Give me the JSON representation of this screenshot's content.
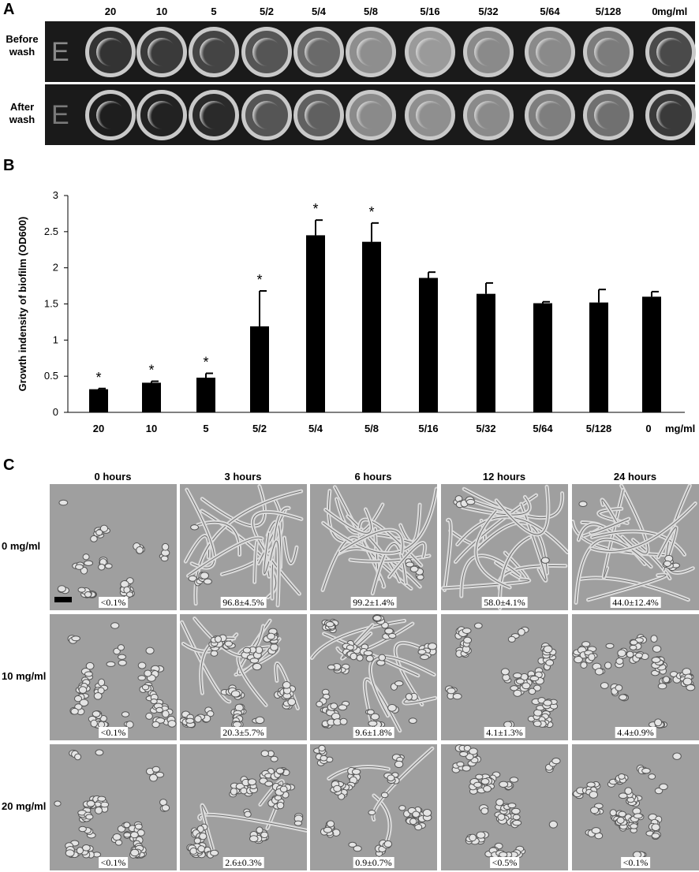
{
  "panel_a": {
    "label": "A",
    "concentrations": [
      "20",
      "10",
      "5",
      "5/2",
      "5/4",
      "5/8",
      "5/16",
      "5/32",
      "5/64",
      "5/128",
      "0"
    ],
    "unit": "mg/ml",
    "rows": [
      {
        "label_line1": "Before",
        "label_line2": "wash",
        "row_letter": "E"
      },
      {
        "label_line1": "After",
        "label_line2": "wash",
        "row_letter": "E"
      }
    ]
  },
  "panel_b": {
    "label": "B"
  },
  "chart_data": {
    "type": "bar",
    "categories": [
      "20",
      "10",
      "5",
      "5/2",
      "5/4",
      "5/8",
      "5/16",
      "5/32",
      "5/64",
      "5/128",
      "0"
    ],
    "values": [
      0.32,
      0.41,
      0.48,
      1.19,
      2.45,
      2.36,
      1.86,
      1.64,
      1.51,
      1.52,
      1.6
    ],
    "errors": [
      0.01,
      0.02,
      0.06,
      0.49,
      0.21,
      0.26,
      0.08,
      0.15,
      0.02,
      0.18,
      0.07
    ],
    "significant": [
      true,
      true,
      true,
      true,
      true,
      true,
      false,
      false,
      false,
      false,
      false
    ],
    "significance_marker": "*",
    "ylabel": "Growth indensity of biofilm (OD600)",
    "xunit": "mg/ml",
    "ylim": [
      0,
      3
    ],
    "yticks": [
      "0",
      "0.5",
      "1",
      "1.5",
      "2",
      "2.5",
      "3"
    ],
    "bar_color": "#000000",
    "grid": false
  },
  "panel_c": {
    "label": "C",
    "times": [
      "0 hours",
      "3 hours",
      "6 hours",
      "12 hours",
      "24 hours"
    ],
    "rows": [
      {
        "label": "0 mg/ml",
        "values": [
          "<0.1%",
          "96.8±4.5%",
          "99.2±1.4%",
          "58.0±4.1%",
          "44.0±12.4%"
        ]
      },
      {
        "label": "10 mg/ml",
        "values": [
          "<0.1%",
          "20.3±5.7%",
          "9.6±1.8%",
          "4.1±1.3%",
          "4.4±0.9%"
        ]
      },
      {
        "label": "20 mg/ml",
        "values": [
          "<0.1%",
          "2.6±0.3%",
          "0.9±0.7%",
          "<0.5%",
          "<0.1%"
        ]
      }
    ]
  }
}
